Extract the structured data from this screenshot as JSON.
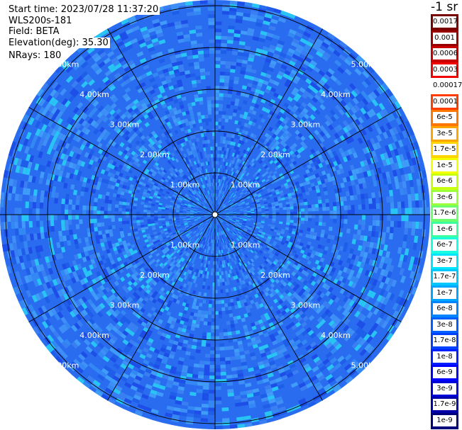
{
  "info": {
    "start_time": "Start time: 2023/07/28 11:37:20",
    "instrument": "WLS200s-181",
    "field": "Field: BETA",
    "elevation": "Elevation(deg): 35.30",
    "nrays": "NRays: 180"
  },
  "colorbar": {
    "title": "-1 sr",
    "labels": [
      "0.0017",
      "0.001",
      "0.0006",
      "0.0003",
      "0.00017",
      "0.0001",
      "6e-5",
      "3e-5",
      "1.7e-5",
      "1e-5",
      "6e-6",
      "3e-6",
      "1.7e-6",
      "1e-6",
      "6e-7",
      "3e-7",
      "1.7e-7",
      "1e-7",
      "6e-8",
      "3e-8",
      "1.7e-8",
      "1e-8",
      "6e-9",
      "3e-9",
      "1.7e-9",
      "1e-9"
    ],
    "colors": [
      "#7a0000",
      "#9a0000",
      "#c80000",
      "#f00000",
      "#ffffff",
      "#ff3b00",
      "#ff7700",
      "#ffa500",
      "#ffd400",
      "#f4ff00",
      "#c8ff10",
      "#9cff3c",
      "#6cff6e",
      "#3cffa0",
      "#19ffdf",
      "#00e6ff",
      "#00c8ff",
      "#00a6ff",
      "#0084ff",
      "#0060ff",
      "#0040ff",
      "#0020ff",
      "#0000ff",
      "#0000d8",
      "#0000aa",
      "#00007a"
    ]
  },
  "range_labels": [
    "1.00km",
    "2.00km",
    "3.00km",
    "4.00km",
    "5.00km"
  ],
  "ppi_colors": {
    "base": "#2a6cf0",
    "palette": [
      "#1d4fe8",
      "#2a6cf0",
      "#3388f4",
      "#3f9cf8",
      "#1f5ee8",
      "#3a7ff2",
      "#27c4f4",
      "#3e8ff6"
    ],
    "ring_line": "#000000",
    "label_text": "#ffffff"
  }
}
